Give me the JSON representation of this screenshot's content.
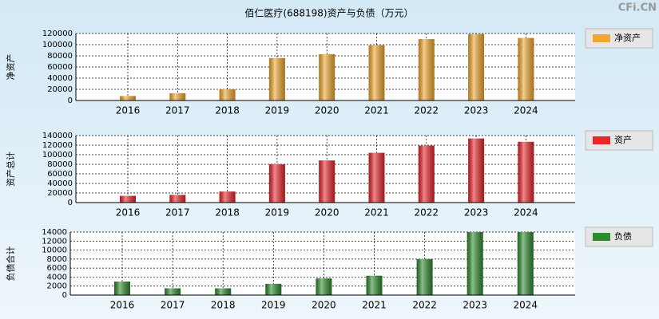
{
  "title": "佰仁医疗(688198)资产与负债（万元）",
  "watermark": "CFi.CN",
  "chart_data": [
    {
      "type": "bar",
      "ylabel": "净资产",
      "grid": true,
      "categories": [
        "2016",
        "2017",
        "2018",
        "2019",
        "2020",
        "2021",
        "2022",
        "2023",
        "2024"
      ],
      "series": [
        {
          "name": "净资产",
          "color": "#f0a830",
          "values": [
            8000,
            13000,
            20000,
            76000,
            83000,
            99000,
            110000,
            119000,
            112000
          ]
        }
      ],
      "ylim": [
        0,
        120000
      ],
      "yticks": [
        0,
        20000,
        40000,
        60000,
        80000,
        100000,
        120000
      ]
    },
    {
      "type": "bar",
      "ylabel": "资产总计",
      "grid": true,
      "categories": [
        "2016",
        "2017",
        "2018",
        "2019",
        "2020",
        "2021",
        "2022",
        "2023",
        "2024"
      ],
      "series": [
        {
          "name": "资产",
          "color": "#e8262a",
          "values": [
            14000,
            16000,
            23000,
            80000,
            88000,
            104000,
            119000,
            134000,
            127000
          ]
        }
      ],
      "ylim": [
        0,
        140000
      ],
      "yticks": [
        0,
        20000,
        40000,
        60000,
        80000,
        100000,
        120000,
        140000
      ]
    },
    {
      "type": "bar",
      "ylabel": "负债合计",
      "grid": true,
      "categories": [
        "2016",
        "2017",
        "2018",
        "2019",
        "2020",
        "2021",
        "2022",
        "2023",
        "2024"
      ],
      "series": [
        {
          "name": "负债",
          "color": "#2e8b2e",
          "values": [
            3000,
            1500,
            1500,
            2500,
            3700,
            4300,
            8000,
            14000,
            14000
          ]
        }
      ],
      "ylim": [
        0,
        14000
      ],
      "yticks": [
        0,
        2000,
        4000,
        6000,
        8000,
        10000,
        12000,
        14000
      ]
    }
  ]
}
